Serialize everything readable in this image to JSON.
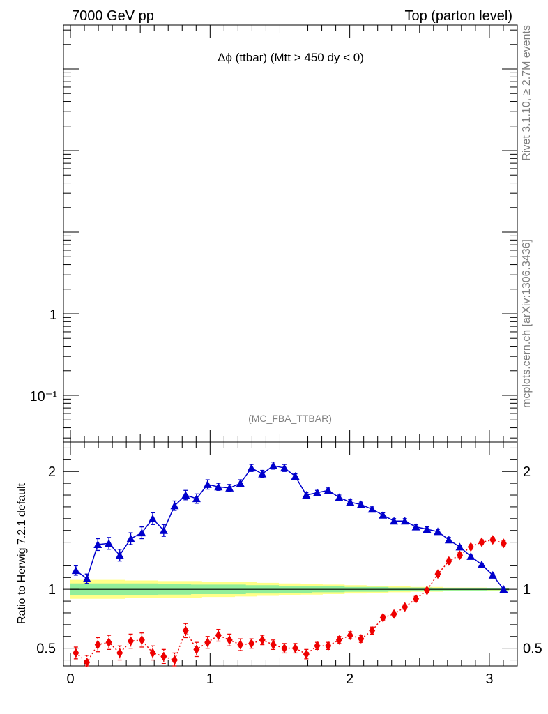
{
  "header": {
    "left": "7000 GeV pp",
    "right": "Top (parton level)"
  },
  "side": {
    "rivet": "Rivet 3.1.10, ≥ 2.7M events",
    "mcplots": "mcplots.cern.ch [arXiv:1306.3436]"
  },
  "plot": {
    "title": "Δϕ (ttbar) (Mtt > 450 dy < 0)",
    "watermark": "(MC_FBA_TTBAR)"
  },
  "chart_data": [
    {
      "type": "line",
      "panel": "main",
      "yscale": "log",
      "xlim": [
        -0.05,
        3.2
      ],
      "y_ticks": [
        {
          "value": 1,
          "label": "1"
        },
        {
          "value": 0.1,
          "label": "10⁻¹"
        }
      ],
      "series": []
    },
    {
      "type": "line",
      "panel": "ratio",
      "ylabel": "Ratio to Herwig 7.2.1 default",
      "xlim": [
        -0.05,
        3.2
      ],
      "ylim": [
        0.35,
        2.25
      ],
      "x_ticks": [
        0,
        1,
        2,
        3
      ],
      "y_ticks": [
        0.5,
        1,
        2
      ],
      "colors": {
        "blue": "#0000cc",
        "red": "#ee0000",
        "band_green": "#91ee9a",
        "band_yellow": "#ffff88"
      },
      "x": [
        0.039,
        0.118,
        0.196,
        0.275,
        0.353,
        0.432,
        0.511,
        0.589,
        0.668,
        0.746,
        0.825,
        0.903,
        0.982,
        1.06,
        1.139,
        1.217,
        1.296,
        1.374,
        1.453,
        1.532,
        1.61,
        1.689,
        1.767,
        1.846,
        1.924,
        2.003,
        2.081,
        2.16,
        2.238,
        2.317,
        2.395,
        2.474,
        2.553,
        2.631,
        2.71,
        2.788,
        2.867,
        2.945,
        3.024,
        3.102
      ],
      "band": {
        "green_halfwidth": [
          0.05,
          0.05,
          0.05,
          0.05,
          0.05,
          0.05,
          0.05,
          0.05,
          0.045,
          0.045,
          0.045,
          0.04,
          0.04,
          0.04,
          0.04,
          0.04,
          0.035,
          0.035,
          0.035,
          0.03,
          0.03,
          0.03,
          0.025,
          0.025,
          0.025,
          0.02,
          0.02,
          0.02,
          0.02,
          0.015,
          0.015,
          0.015,
          0.015,
          0.012,
          0.01,
          0.01,
          0.01,
          0.01,
          0.008,
          0.008
        ],
        "yellow_halfwidth": [
          0.08,
          0.08,
          0.08,
          0.08,
          0.08,
          0.075,
          0.075,
          0.075,
          0.07,
          0.07,
          0.07,
          0.07,
          0.065,
          0.065,
          0.065,
          0.06,
          0.06,
          0.055,
          0.055,
          0.05,
          0.05,
          0.045,
          0.045,
          0.04,
          0.04,
          0.035,
          0.035,
          0.03,
          0.03,
          0.025,
          0.025,
          0.02,
          0.02,
          0.02,
          0.015,
          0.015,
          0.015,
          0.015,
          0.012,
          0.012
        ]
      },
      "series": [
        {
          "color": "#0000cc",
          "marker": "triangle",
          "line": "solid",
          "y": [
            1.16,
            1.09,
            1.38,
            1.39,
            1.29,
            1.43,
            1.48,
            1.6,
            1.5,
            1.71,
            1.8,
            1.77,
            1.89,
            1.87,
            1.86,
            1.9,
            2.03,
            1.98,
            2.05,
            2.03,
            1.96,
            1.8,
            1.82,
            1.84,
            1.78,
            1.74,
            1.72,
            1.68,
            1.63,
            1.58,
            1.58,
            1.53,
            1.51,
            1.49,
            1.42,
            1.36,
            1.28,
            1.21,
            1.12,
            1.0
          ],
          "err": [
            0.04,
            0.04,
            0.05,
            0.05,
            0.05,
            0.05,
            0.05,
            0.05,
            0.05,
            0.04,
            0.04,
            0.04,
            0.04,
            0.03,
            0.03,
            0.03,
            0.03,
            0.03,
            0.03,
            0.03,
            0.02,
            0.02,
            0.02,
            0.02,
            0.02,
            0.02,
            0.02,
            0.02,
            0.02,
            0.02,
            0.02,
            0.02,
            0.02,
            0.02,
            0.02,
            0.01,
            0.01,
            0.01,
            0.01,
            0.01
          ]
        },
        {
          "color": "#ee0000",
          "marker": "diamond",
          "line": "dotted",
          "y": [
            0.46,
            0.38,
            0.53,
            0.55,
            0.46,
            0.56,
            0.57,
            0.46,
            0.43,
            0.4,
            0.65,
            0.49,
            0.55,
            0.61,
            0.57,
            0.53,
            0.54,
            0.57,
            0.53,
            0.5,
            0.5,
            0.45,
            0.52,
            0.52,
            0.57,
            0.61,
            0.58,
            0.65,
            0.76,
            0.79,
            0.85,
            0.92,
            0.99,
            1.13,
            1.24,
            1.29,
            1.36,
            1.4,
            1.42,
            1.39
          ],
          "err": [
            0.05,
            0.06,
            0.06,
            0.06,
            0.06,
            0.06,
            0.06,
            0.06,
            0.06,
            0.06,
            0.06,
            0.06,
            0.05,
            0.05,
            0.05,
            0.05,
            0.04,
            0.04,
            0.04,
            0.04,
            0.04,
            0.04,
            0.03,
            0.03,
            0.03,
            0.03,
            0.03,
            0.03,
            0.02,
            0.02,
            0.02,
            0.02,
            0.02,
            0.02,
            0.02,
            0.02,
            0.02,
            0.02,
            0.02,
            0.02
          ]
        }
      ]
    }
  ]
}
